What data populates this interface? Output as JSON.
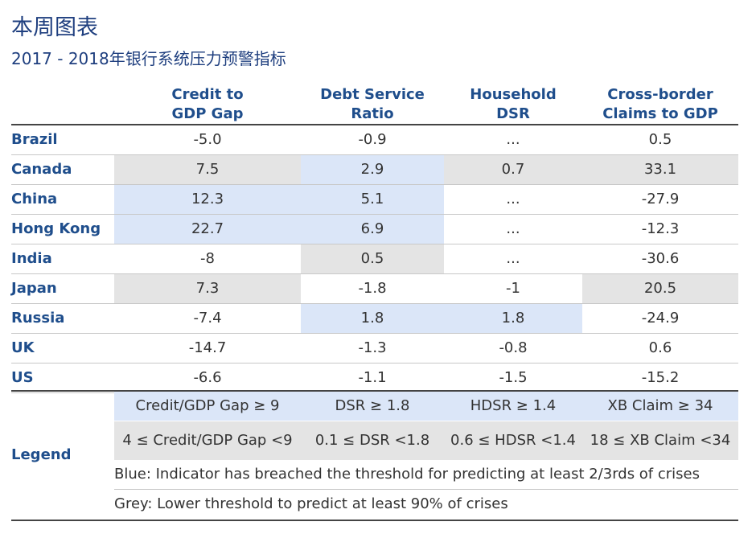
{
  "title": "本周图表",
  "subtitle": "2017  -  2018年银行系统压力预警指标",
  "headers": {
    "c1": [
      "Credit to",
      "GDP Gap"
    ],
    "c2": [
      "Debt Service",
      "Ratio"
    ],
    "c3": [
      "Household",
      "DSR"
    ],
    "c4": [
      "Cross-border",
      "Claims to GDP"
    ]
  },
  "rows": [
    {
      "country": "Brazil",
      "c1": "-5.0",
      "c2": "-0.9",
      "c3": "...",
      "c4": "0.5"
    },
    {
      "country": "Canada",
      "c1": "7.5",
      "c2": "2.9",
      "c3": "0.7",
      "c4": "33.1"
    },
    {
      "country": "China",
      "c1": "12.3",
      "c2": "5.1",
      "c3": "...",
      "c4": "-27.9"
    },
    {
      "country": "Hong Kong",
      "c1": "22.7",
      "c2": "6.9",
      "c3": "...",
      "c4": "-12.3"
    },
    {
      "country": "India",
      "c1": "-8",
      "c2": "0.5",
      "c3": "...",
      "c4": "-30.6"
    },
    {
      "country": "Japan",
      "c1": "7.3",
      "c2": "-1.8",
      "c3": "-1",
      "c4": "20.5"
    },
    {
      "country": "Russia",
      "c1": "-7.4",
      "c2": "1.8",
      "c3": "1.8",
      "c4": "-24.9"
    },
    {
      "country": "UK",
      "c1": "-14.7",
      "c2": "-1.3",
      "c3": "-0.8",
      "c4": "0.6"
    },
    {
      "country": "US",
      "c1": "-6.6",
      "c2": "-1.1",
      "c3": "-1.5",
      "c4": "-15.2"
    }
  ],
  "legend": {
    "label": "Legend",
    "blue_thresholds": [
      "Credit/GDP Gap ≥ 9",
      "DSR ≥ 1.8",
      "HDSR ≥ 1.4",
      "XB Claim ≥ 34"
    ],
    "grey_thresholds": [
      "4 ≤ Credit/GDP Gap <9",
      "0.1 ≤ DSR <1.8",
      "0.6 ≤ HDSR <1.4",
      "18 ≤ XB Claim <34"
    ],
    "blue_note": "Blue: Indicator has breached the threshold for predicting at least 2/3rds of crises",
    "grey_note": "Grey: Lower threshold to predict at least 90% of crises"
  },
  "colors": {
    "blue": "#dbe6f8",
    "grey": "#e4e4e4",
    "header": "#1f4e8c",
    "title": "#1f3f7f"
  }
}
